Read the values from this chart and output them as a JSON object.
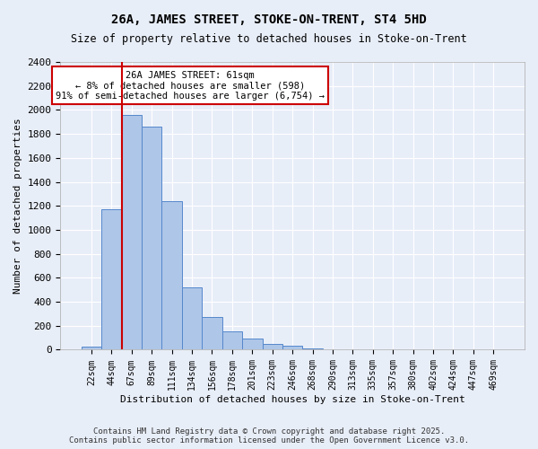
{
  "title": "26A, JAMES STREET, STOKE-ON-TRENT, ST4 5HD",
  "subtitle": "Size of property relative to detached houses in Stoke-on-Trent",
  "xlabel": "Distribution of detached houses by size in Stoke-on-Trent",
  "ylabel": "Number of detached properties",
  "bins": [
    "22sqm",
    "44sqm",
    "67sqm",
    "89sqm",
    "111sqm",
    "134sqm",
    "156sqm",
    "178sqm",
    "201sqm",
    "223sqm",
    "246sqm",
    "268sqm",
    "290sqm",
    "313sqm",
    "335sqm",
    "357sqm",
    "380sqm",
    "402sqm",
    "424sqm",
    "447sqm",
    "469sqm"
  ],
  "values": [
    25,
    1170,
    1960,
    1860,
    1240,
    520,
    270,
    155,
    90,
    45,
    35,
    10,
    5,
    2,
    1,
    0,
    0,
    0,
    0,
    0,
    0
  ],
  "bar_color": "#aec6e8",
  "bar_edge_color": "#5588cc",
  "annotation_text": "26A JAMES STREET: 61sqm\n← 8% of detached houses are smaller (598)\n91% of semi-detached houses are larger (6,754) →",
  "annotation_box_color": "#ffffff",
  "annotation_box_edge": "#cc0000",
  "vline_color": "#cc0000",
  "bg_color": "#e8eef8",
  "grid_color": "#ffffff",
  "footer1": "Contains HM Land Registry data © Crown copyright and database right 2025.",
  "footer2": "Contains public sector information licensed under the Open Government Licence v3.0.",
  "ylim": [
    0,
    2400
  ],
  "yticks": [
    0,
    200,
    400,
    600,
    800,
    1000,
    1200,
    1400,
    1600,
    1800,
    2000,
    2200,
    2400
  ],
  "vline_x": 1.5
}
